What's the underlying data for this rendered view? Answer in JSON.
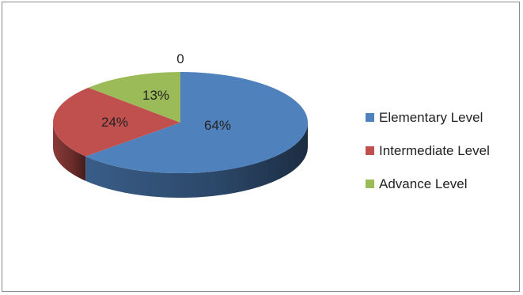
{
  "chart_data": {
    "type": "pie",
    "title": "",
    "categories": [
      "Elementary Level",
      "Intermediate Level",
      "Advance Level",
      ""
    ],
    "values": [
      64,
      24,
      13,
      0
    ],
    "data_labels": [
      "64%",
      "24%",
      "13%",
      "0"
    ],
    "legend": {
      "position": "right",
      "entries": [
        "Elementary Level",
        "Intermediate Level",
        "Advance Level"
      ]
    },
    "colors": [
      "#4f81bd",
      "#c0504d",
      "#9bbb59"
    ],
    "style": "3d"
  }
}
